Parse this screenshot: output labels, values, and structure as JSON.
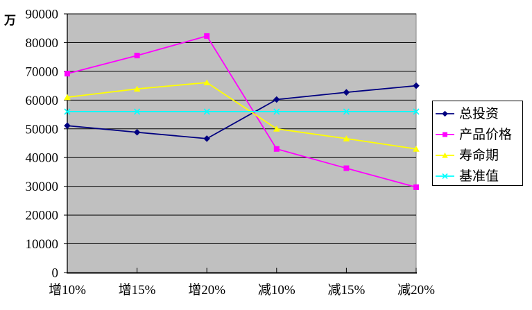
{
  "chart_data": {
    "type": "line",
    "unit": "万",
    "title": "",
    "xlabel": "",
    "ylabel": "万",
    "categories": [
      "增10%",
      "增15%",
      "增20%",
      "减10%",
      "减15%",
      "减20%"
    ],
    "series": [
      {
        "name": "总投资",
        "color": "#000080",
        "marker": "diamond",
        "values": [
          51100,
          48800,
          46600,
          60200,
          62700,
          65000
        ]
      },
      {
        "name": "产品价格",
        "color": "#FF00FF",
        "marker": "square",
        "values": [
          69200,
          75500,
          82300,
          43000,
          36300,
          29700
        ]
      },
      {
        "name": "寿命期",
        "color": "#FFFF00",
        "marker": "triangle",
        "values": [
          61000,
          63900,
          66100,
          50000,
          46600,
          43000
        ]
      },
      {
        "name": "基准值",
        "color": "#00FFFF",
        "marker": "x",
        "values": [
          56000,
          56000,
          56000,
          56000,
          56000,
          56000
        ]
      }
    ],
    "ylim": [
      0,
      90000
    ],
    "ytick_interval": 10000,
    "yticks": [
      0,
      10000,
      20000,
      30000,
      40000,
      50000,
      60000,
      70000,
      80000,
      90000
    ],
    "grid": true,
    "legend_position": "right",
    "plot_bg": "#C0C0C0",
    "axis_color": "#000000",
    "plot_frame_color": "#848484"
  }
}
